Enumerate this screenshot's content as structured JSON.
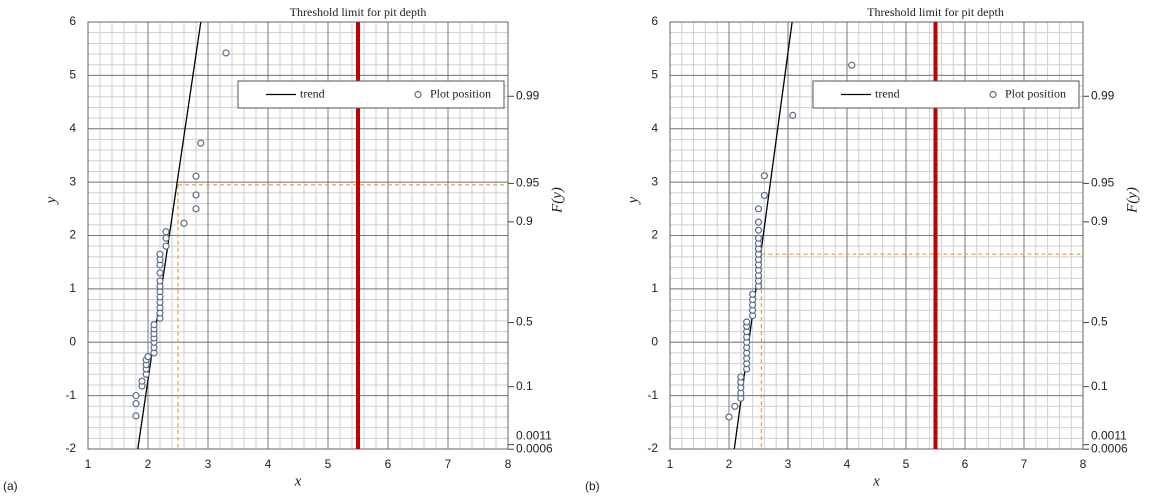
{
  "chart_data": [
    {
      "type": "scatter",
      "panel_label": "(a)",
      "annotation": "Threshold limit for pit depth",
      "threshold_x": 5.5,
      "threshold_color": "#c00000",
      "guide_x": 2.5,
      "guide_y": 2.95,
      "guide_color": "#e0a030",
      "xlabel": "x",
      "ylabel": "y",
      "y2label": "F(y)",
      "xlim": [
        1,
        8
      ],
      "xticks": [
        1,
        2,
        3,
        4,
        5,
        6,
        7,
        8
      ],
      "ylim": [
        -2,
        6
      ],
      "yticks": [
        -2,
        -1,
        0,
        1,
        2,
        3,
        4,
        5,
        6
      ],
      "y2scale": "gumbel",
      "y2lim": [
        0.000618,
        0.9975
      ],
      "y2ticks": [
        0.0006,
        0.0011,
        0.1,
        0.5,
        0.9,
        0.95,
        0.99
      ],
      "grid": true,
      "minor_grid": true,
      "legend": "upper right",
      "series": [
        {
          "name": "trend",
          "type": "line",
          "color": "#000000",
          "x": [
            1.83,
            2.88
          ],
          "values": [
            -2,
            6
          ]
        },
        {
          "name": "Plot position",
          "type": "scatter",
          "color": "#5b6c8f",
          "x": [
            1.8,
            1.8,
            1.8,
            1.9,
            1.9,
            1.97,
            1.97,
            1.97,
            1.97,
            2.0,
            2.1,
            2.1,
            2.1,
            2.1,
            2.1,
            2.1,
            2.1,
            2.2,
            2.2,
            2.2,
            2.2,
            2.2,
            2.2,
            2.2,
            2.2,
            2.2,
            2.2,
            2.2,
            2.2,
            2.3,
            2.3,
            2.3,
            2.6,
            2.8,
            2.8,
            2.8,
            2.88,
            3.3
          ],
          "values": [
            -1.38,
            -1.15,
            -1.0,
            -0.82,
            -0.73,
            -0.6,
            -0.5,
            -0.42,
            -0.33,
            -0.27,
            -0.2,
            -0.1,
            0,
            0.08,
            0.16,
            0.25,
            0.33,
            0.45,
            0.55,
            0.65,
            0.75,
            0.85,
            0.95,
            1.05,
            1.15,
            1.3,
            1.45,
            1.55,
            1.65,
            1.8,
            1.95,
            2.07,
            2.23,
            2.5,
            2.76,
            3.11,
            3.73,
            5.42
          ]
        }
      ]
    },
    {
      "type": "scatter",
      "panel_label": "(b)",
      "annotation": "Threshold limit for pit depth",
      "threshold_x": 5.5,
      "threshold_color": "#c00000",
      "guide_x": 2.55,
      "guide_y": 1.65,
      "guide_color": "#e0a030",
      "xlabel": "x",
      "ylabel": "y",
      "y2label": "F(y)",
      "xlim": [
        1,
        8
      ],
      "xticks": [
        1,
        2,
        3,
        4,
        5,
        6,
        7,
        8
      ],
      "ylim": [
        -2,
        6
      ],
      "yticks": [
        -2,
        -1,
        0,
        1,
        2,
        3,
        4,
        5,
        6
      ],
      "y2scale": "gumbel",
      "y2lim": [
        0.000618,
        0.9975
      ],
      "y2ticks": [
        0.0006,
        0.0011,
        0.1,
        0.5,
        0.9,
        0.95,
        0.99
      ],
      "grid": true,
      "minor_grid": true,
      "legend": "upper right",
      "series": [
        {
          "name": "trend",
          "type": "line",
          "color": "#000000",
          "x": [
            2.09,
            3.07
          ],
          "values": [
            -2,
            6
          ]
        },
        {
          "name": "Plot position",
          "type": "scatter",
          "color": "#5b6c8f",
          "x": [
            2.0,
            2.1,
            2.2,
            2.2,
            2.2,
            2.2,
            2.2,
            2.3,
            2.3,
            2.3,
            2.3,
            2.3,
            2.3,
            2.3,
            2.3,
            2.3,
            2.3,
            2.4,
            2.4,
            2.4,
            2.4,
            2.4,
            2.5,
            2.5,
            2.5,
            2.5,
            2.5,
            2.5,
            2.5,
            2.5,
            2.5,
            2.5,
            2.5,
            2.5,
            2.5,
            2.6,
            2.6,
            3.08,
            4.08
          ],
          "values": [
            -1.4,
            -1.2,
            -1.05,
            -0.95,
            -0.85,
            -0.75,
            -0.65,
            -0.5,
            -0.4,
            -0.3,
            -0.2,
            -0.1,
            0,
            0.1,
            0.2,
            0.3,
            0.38,
            0.5,
            0.6,
            0.7,
            0.8,
            0.9,
            1.05,
            1.15,
            1.25,
            1.35,
            1.45,
            1.55,
            1.65,
            1.75,
            1.85,
            1.95,
            2.1,
            2.25,
            2.5,
            2.75,
            3.12,
            4.25,
            5.19
          ]
        }
      ]
    }
  ]
}
